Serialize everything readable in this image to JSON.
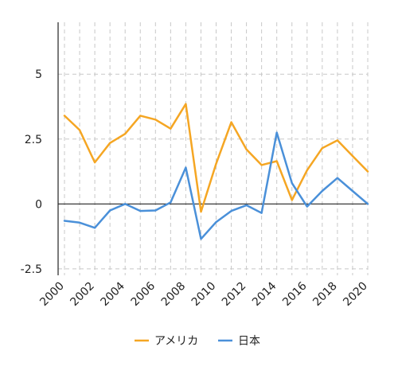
{
  "chart_data": {
    "type": "line",
    "title": "",
    "xlabel": "",
    "ylabel": "",
    "x": [
      2000,
      2001,
      2002,
      2003,
      2004,
      2005,
      2006,
      2007,
      2008,
      2009,
      2010,
      2011,
      2012,
      2013,
      2014,
      2015,
      2016,
      2017,
      2018,
      2019,
      2020
    ],
    "x_ticks": [
      "2000",
      "2002",
      "2004",
      "2006",
      "2008",
      "2010",
      "2012",
      "2014",
      "2016",
      "2018",
      "2020"
    ],
    "y_ticks": [
      -2.5,
      0,
      2.5,
      5
    ],
    "y_tick_labels": [
      "-2.5",
      "0",
      "2.5",
      "5"
    ],
    "ylim": [
      -2.75,
      7
    ],
    "xlim": [
      2000,
      2020
    ],
    "grid": true,
    "legend": "bottom",
    "series": [
      {
        "name": "アメリカ",
        "color": "#f5a623",
        "values": [
          3.4,
          2.85,
          1.6,
          2.35,
          2.7,
          3.4,
          3.25,
          2.9,
          3.85,
          -0.3,
          1.55,
          3.15,
          2.1,
          1.5,
          1.65,
          0.15,
          1.3,
          2.15,
          2.45,
          1.85,
          1.25
        ]
      },
      {
        "name": "日本",
        "color": "#4a90d9",
        "values": [
          -0.65,
          -0.72,
          -0.92,
          -0.25,
          0.0,
          -0.27,
          -0.25,
          0.06,
          1.4,
          -1.35,
          -0.7,
          -0.27,
          -0.05,
          -0.35,
          2.75,
          0.8,
          -0.1,
          0.5,
          1.0,
          0.5,
          0.0
        ]
      }
    ]
  }
}
